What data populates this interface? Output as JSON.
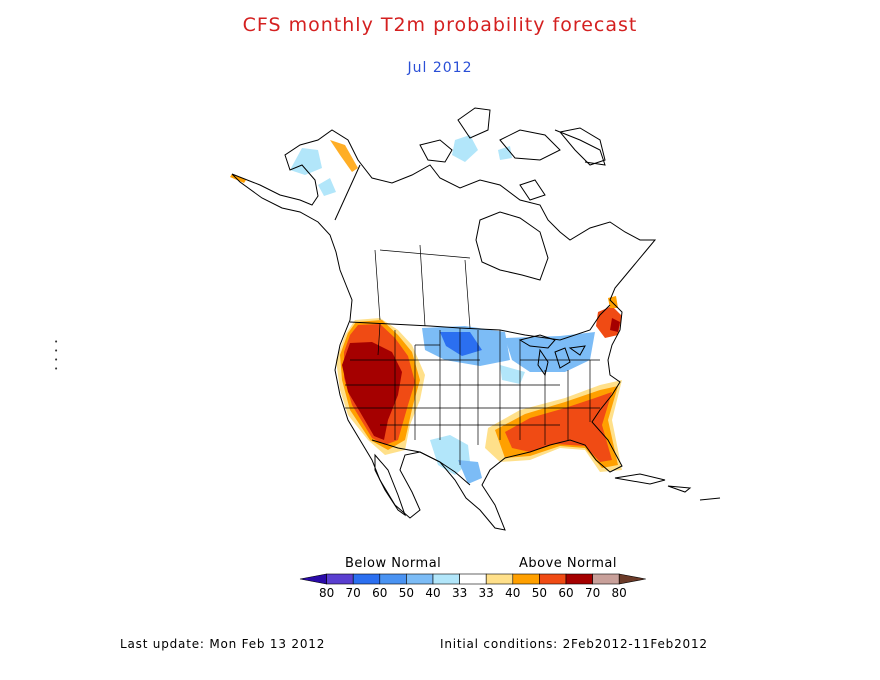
{
  "title": "CFS monthly T2m probability forecast",
  "subtitle": "Jul 2012",
  "legend": {
    "below_label": "Below Normal",
    "above_label": "Above Normal",
    "tick_labels": [
      "80",
      "70",
      "60",
      "50",
      "40",
      "33",
      "33",
      "40",
      "50",
      "60",
      "70",
      "80"
    ],
    "colors": [
      "#2a0aa8",
      "#5a3fd0",
      "#2b6ff0",
      "#4a93f2",
      "#7cbcf6",
      "#b2e6fa",
      "#ffffff",
      "#ffe08a",
      "#ffa000",
      "#f04b14",
      "#a50000",
      "#c8a09a",
      "#6b3a28"
    ]
  },
  "footer": {
    "last_update": "Last update: Mon Feb 13 2012",
    "initial_conditions": "Initial conditions: 2Feb2012-11Feb2012"
  },
  "colors": {
    "title": "#d42020",
    "subtitle": "#2a4fd6"
  }
}
